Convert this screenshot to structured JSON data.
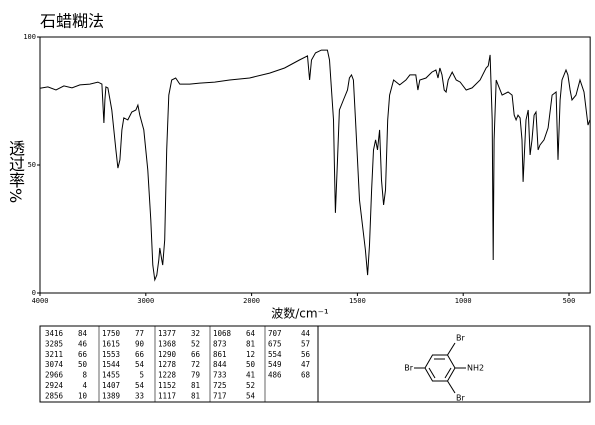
{
  "chart_data": {
    "type": "line",
    "title": "石蜡糊法",
    "x_label": "波数/cm⁻¹",
    "y_label": "透过率%",
    "xlim": [
      4000,
      400
    ],
    "xticks": [
      4000,
      3000,
      2000,
      1500,
      1000,
      500
    ],
    "ylim": [
      0,
      100
    ],
    "yticks": [
      0,
      50,
      100
    ],
    "color": "#000000",
    "x": [
      4000,
      3925,
      3849,
      3774,
      3698,
      3623,
      3528,
      3453,
      3415,
      3396,
      3387,
      3377,
      3358,
      3321,
      3283,
      3264,
      3245,
      3226,
      3208,
      3170,
      3132,
      3094,
      3075,
      3057,
      3019,
      2981,
      2953,
      2934,
      2915,
      2896,
      2877,
      2868,
      2849,
      2840,
      2821,
      2802,
      2783,
      2755,
      2717,
      2679,
      2585,
      2491,
      2349,
      2208,
      2019,
      1915,
      1844,
      1774,
      1736,
      1726,
      1717,
      1698,
      1670,
      1642,
      1632,
      1613,
      1608,
      1604,
      1594,
      1585,
      1566,
      1547,
      1538,
      1528,
      1519,
      1509,
      1490,
      1462,
      1452,
      1443,
      1433,
      1424,
      1414,
      1405,
      1395,
      1386,
      1376,
      1367,
      1357,
      1348,
      1329,
      1300,
      1271,
      1252,
      1224,
      1214,
      1205,
      1176,
      1148,
      1129,
      1119,
      1110,
      1100,
      1090,
      1081,
      1071,
      1052,
      1033,
      1014,
      986,
      958,
      920,
      892,
      882,
      873,
      863,
      858,
      854,
      844,
      835,
      816,
      788,
      769,
      759,
      750,
      741,
      731,
      722,
      717,
      712,
      703,
      693,
      684,
      675,
      665,
      656,
      646,
      637,
      618,
      599,
      580,
      561,
      552,
      542,
      533,
      514,
      505,
      495,
      486,
      467,
      448,
      429,
      410,
      401
    ],
    "values": [
      80,
      80.5,
      79.3,
      80.9,
      80.1,
      81.3,
      81.6,
      82.4,
      81.6,
      66.4,
      75.4,
      80.5,
      80.1,
      71.5,
      55.9,
      48.8,
      52,
      63.7,
      68.4,
      67.6,
      70.7,
      71.5,
      73.4,
      69.5,
      63.7,
      48,
      28.5,
      10.9,
      5.1,
      7,
      12.9,
      17.6,
      12.9,
      10.9,
      20.7,
      55.9,
      77.3,
      83.2,
      84,
      81.6,
      81.6,
      82,
      82.4,
      83.2,
      84,
      85.9,
      87.9,
      91,
      92.6,
      83.2,
      91,
      93.8,
      94.9,
      94.9,
      91,
      67.6,
      48,
      31.3,
      52,
      71.5,
      75.4,
      79.3,
      84,
      85.2,
      83.2,
      67.6,
      36.3,
      16.8,
      7,
      18.8,
      40.2,
      55.9,
      59.8,
      55.9,
      63.7,
      44.1,
      34.4,
      40.2,
      67.6,
      77.3,
      83.2,
      81.3,
      83.2,
      85.2,
      85.2,
      79.3,
      83.2,
      84,
      86.3,
      87.1,
      84,
      87.9,
      85.2,
      79.3,
      78.5,
      83.2,
      86.3,
      83.2,
      82.4,
      79.3,
      80.1,
      83.2,
      87.9,
      88.7,
      93,
      67.6,
      12.9,
      59.8,
      83.2,
      81.3,
      77.3,
      78.5,
      77.3,
      69.5,
      67.6,
      69.5,
      68.4,
      59.8,
      43.4,
      52,
      67.6,
      71.5,
      53.9,
      59.8,
      69.5,
      70.7,
      55.9,
      57.8,
      59.8,
      64.5,
      77.3,
      78.5,
      52,
      75.4,
      83.2,
      87.1,
      85.2,
      79.3,
      75.4,
      77.3,
      83.2,
      78.5,
      65.6,
      67.6
    ]
  },
  "table": {
    "columns": [
      [
        [
          3416,
          84
        ],
        [
          3285,
          46
        ],
        [
          3211,
          66
        ],
        [
          3074,
          50
        ],
        [
          2966,
          8
        ],
        [
          2924,
          4
        ],
        [
          2856,
          10
        ]
      ],
      [
        [
          1750,
          77
        ],
        [
          1615,
          90
        ],
        [
          1553,
          66
        ],
        [
          1544,
          54
        ],
        [
          1455,
          5
        ],
        [
          1407,
          54
        ],
        [
          1389,
          33
        ]
      ],
      [
        [
          1377,
          32
        ],
        [
          1368,
          52
        ],
        [
          1290,
          66
        ],
        [
          1278,
          72
        ],
        [
          1228,
          79
        ],
        [
          1152,
          81
        ],
        [
          1117,
          81
        ]
      ],
      [
        [
          1068,
          64
        ],
        [
          873,
          81
        ],
        [
          861,
          12
        ],
        [
          844,
          50
        ],
        [
          733,
          41
        ],
        [
          725,
          52
        ],
        [
          717,
          54
        ]
      ],
      [
        [
          707,
          44
        ],
        [
          675,
          57
        ],
        [
          554,
          56
        ],
        [
          549,
          47
        ],
        [
          486,
          68
        ]
      ]
    ]
  },
  "structure": {
    "labels": [
      "Br",
      "Br",
      "NH2",
      "Br"
    ]
  }
}
